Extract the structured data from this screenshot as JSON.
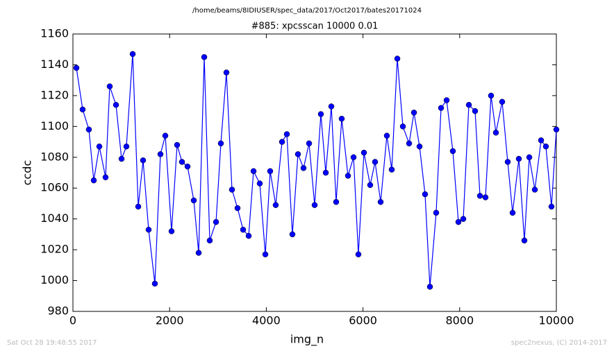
{
  "chart_data": {
    "type": "line",
    "suptitle": "/home/beams/8IDIUSER/spec_data/2017/Oct2017/bates20171024",
    "title": "#885: xpcsscan 10000 0.01",
    "xlabel": "img_n",
    "ylabel": "ccdc",
    "footer_left": "Sat Oct 28 19:48:55 2017",
    "footer_right": "spec2nexus, (C) 2014-2017",
    "color": "#0000ff",
    "x": [
      72,
      201,
      330,
      431,
      546,
      675,
      761,
      891,
      1006,
      1106,
      1236,
      1351,
      1451,
      1566,
      1695,
      1810,
      1911,
      2040,
      2155,
      2256,
      2371,
      2500,
      2601,
      2716,
      2830,
      2960,
      3060,
      3175,
      3290,
      3405,
      3520,
      3635,
      3736,
      3865,
      3980,
      4080,
      4195,
      4325,
      4425,
      4540,
      4655,
      4770,
      4885,
      5000,
      5129,
      5230,
      5345,
      5445,
      5560,
      5690,
      5805,
      5905,
      6020,
      6149,
      6250,
      6365,
      6494,
      6595,
      6710,
      6825,
      6954,
      7055,
      7170,
      7284,
      7385,
      7514,
      7615,
      7730,
      7859,
      7974,
      8075,
      8190,
      8319,
      8420,
      8534,
      8649,
      8750,
      8879,
      8994,
      9095,
      9224,
      9339,
      9440,
      9555,
      9684,
      9784,
      9899,
      10000
    ],
    "values": [
      1138,
      1111,
      1098,
      1065,
      1087,
      1067,
      1126,
      1114,
      1079,
      1087,
      1147,
      1048,
      1078,
      1033,
      998,
      1082,
      1094,
      1032,
      1088,
      1077,
      1074,
      1052,
      1018,
      1145,
      1026,
      1038,
      1089,
      1135,
      1059,
      1047,
      1033,
      1029,
      1071,
      1063,
      1017,
      1071,
      1049,
      1090,
      1095,
      1030,
      1082,
      1073,
      1089,
      1049,
      1108,
      1070,
      1113,
      1051,
      1105,
      1068,
      1080,
      1017,
      1083,
      1062,
      1077,
      1051,
      1094,
      1072,
      1144,
      1100,
      1089,
      1109,
      1087,
      1056,
      996,
      1044,
      1112,
      1117,
      1084,
      1038,
      1040,
      1114,
      1110,
      1055,
      1054,
      1120,
      1096,
      1116,
      1077,
      1044,
      1079,
      1026,
      1080,
      1059,
      1091,
      1087,
      1048,
      1098
    ],
    "xlim": [
      0,
      10000
    ],
    "xticks": [
      0,
      2000,
      4000,
      6000,
      8000,
      10000
    ],
    "ylim": [
      980,
      1160
    ],
    "yticks": [
      980,
      1000,
      1020,
      1040,
      1060,
      1080,
      1100,
      1120,
      1140,
      1160
    ]
  }
}
